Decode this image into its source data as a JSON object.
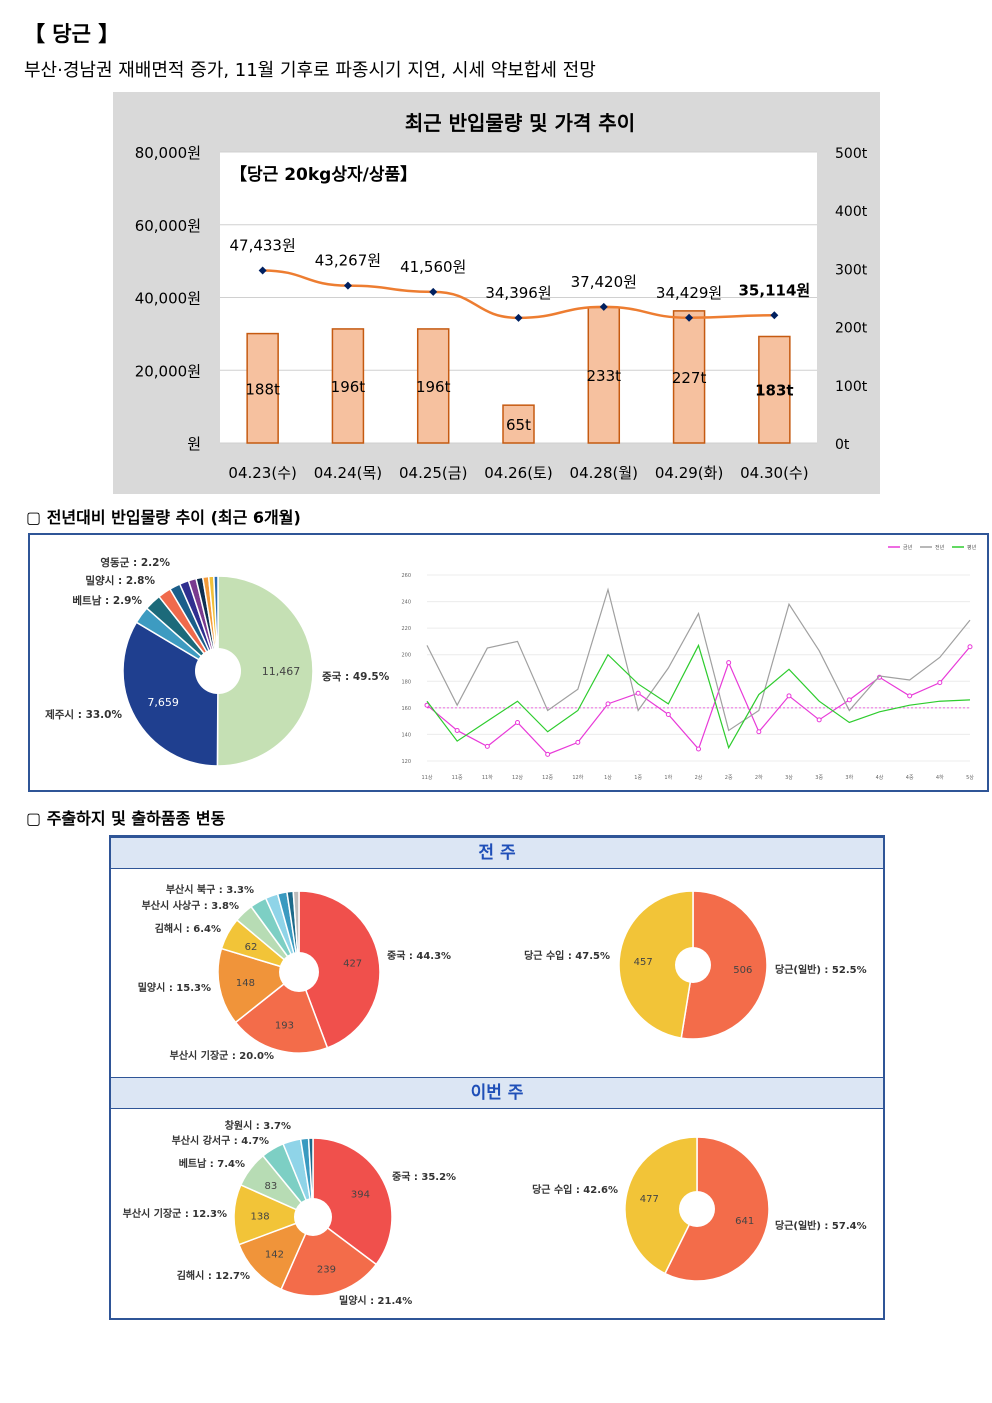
{
  "header": {
    "title": "【 당근 】",
    "subtitle": "부산·경남권 재배면적 증가, 11월 기후로 파종시기 지연, 시세 약보합세 전망"
  },
  "sections": {
    "prev_year": "▢  전년대비 반입물량 추이 (최근 6개월)",
    "shipping": "▢  주출하지 및 출하품종 변동",
    "last_week": "전 주",
    "this_week": "이번 주"
  },
  "chart_data": [
    {
      "type": "bar+line",
      "title": "최근 반입물량 및 가격 추이",
      "subtitle": "【당근 20kg상자/상품】",
      "categories": [
        "04.23(수)",
        "04.24(목)",
        "04.25(금)",
        "04.26(토)",
        "04.28(월)",
        "04.29(화)",
        "04.30(수)"
      ],
      "price_labels": [
        "47,433원",
        "43,267원",
        "41,560원",
        "34,396원",
        "37,420원",
        "34,429원",
        "35,114원"
      ],
      "price": [
        47433,
        43267,
        41560,
        34396,
        37420,
        34429,
        35114
      ],
      "volume_labels": [
        "188t",
        "196t",
        "196t",
        "65t",
        "233t",
        "227t",
        "183t"
      ],
      "volume": [
        188,
        196,
        196,
        65,
        233,
        227,
        183
      ],
      "left_axis": {
        "ticks": [
          "80,000원",
          "60,000원",
          "40,000원",
          "20,000원",
          "원"
        ],
        "range": [
          0,
          80000
        ]
      },
      "right_axis": {
        "ticks": [
          "500t",
          "400t",
          "300t",
          "200t",
          "100t",
          "0t"
        ],
        "range": [
          0,
          500
        ]
      },
      "colors": {
        "bar": "#f6c19f",
        "bar_stroke": "#c55a11",
        "line": "#ed7d31",
        "marker": "#002060"
      }
    },
    {
      "type": "pie",
      "slices": [
        {
          "label": "중국 : 49.5%",
          "value": 11467,
          "value_label": "11,467",
          "color": "#c5e0b4"
        },
        {
          "label": "제주시 : 33.0%",
          "value": 7659,
          "value_label": "7,659",
          "color": "#1f3f8f"
        },
        {
          "label": "베트남 : 2.9%",
          "value": 672,
          "color": "#3d9bc1"
        },
        {
          "label": "밀양시 : 2.8%",
          "value": 649,
          "color": "#1c6a7a"
        },
        {
          "label": "영동군 : 2.2%",
          "value": 510,
          "color": "#f06a4c"
        },
        {
          "label": "",
          "value": 420,
          "color": "#1b5e8a"
        },
        {
          "label": "",
          "value": 360,
          "color": "#2f2f8f"
        },
        {
          "label": "",
          "value": 300,
          "color": "#7a3a8f"
        },
        {
          "label": "",
          "value": 260,
          "color": "#0f2f4f"
        },
        {
          "label": "",
          "value": 230,
          "color": "#f39a3a"
        },
        {
          "label": "",
          "value": 200,
          "color": "#f0c03a"
        },
        {
          "label": "",
          "value": 160,
          "color": "#2a6ab0"
        }
      ]
    },
    {
      "type": "line",
      "legend": [
        "금년",
        "전년",
        "평년"
      ],
      "x": [
        "11상",
        "11중",
        "11하",
        "12상",
        "12중",
        "12하",
        "1상",
        "1중",
        "1하",
        "2상",
        "2중",
        "2하",
        "3상",
        "3중",
        "3하",
        "4상",
        "4중",
        "4하",
        "5상"
      ],
      "y_ticks": [
        120,
        140,
        160,
        180,
        200,
        220,
        240,
        260
      ],
      "ylim": [
        120,
        260
      ],
      "series": [
        {
          "name": "금년",
          "values": [
            162,
            143,
            131,
            149,
            125,
            134,
            163,
            171,
            155,
            129,
            194,
            142,
            169,
            151,
            166,
            183,
            169,
            179,
            206
          ],
          "color": "#e83ad8"
        },
        {
          "name": "전년",
          "values": [
            207,
            162,
            205,
            210,
            158,
            174,
            249,
            158,
            190,
            231,
            143,
            158,
            238,
            203,
            158,
            184,
            181,
            198,
            226
          ],
          "color": "#a0a0a0"
        },
        {
          "name": "평년",
          "values": [
            165,
            135,
            150,
            165,
            142,
            158,
            200,
            178,
            163,
            207,
            130,
            170,
            189,
            165,
            149,
            157,
            162,
            165,
            166
          ],
          "color": "#2ecc2e"
        }
      ],
      "reference": 160
    },
    {
      "type": "pie",
      "title": "전 주",
      "slices": [
        {
          "label": "중국 : 44.3%",
          "value": 427,
          "value_label": "427",
          "color": "#f0504c"
        },
        {
          "label": "부산시 기장군 : 20.0%",
          "value": 193,
          "value_label": "193",
          "color": "#f36c4a"
        },
        {
          "label": "밀양시 : 15.3%",
          "value": 148,
          "value_label": "148",
          "color": "#f0943a"
        },
        {
          "label": "김해시 : 6.4%",
          "value": 62,
          "value_label": "62",
          "color": "#f2c438"
        },
        {
          "label": "부산시 사상구 : 3.8%",
          "value": 37,
          "color": "#b7dcb4"
        },
        {
          "label": "부산시 북구 : 3.3%",
          "value": 32,
          "color": "#7dcfc4"
        },
        {
          "label": "",
          "value": 24,
          "color": "#8fd4e8"
        },
        {
          "label": "",
          "value": 18,
          "color": "#3a9ac0"
        },
        {
          "label": "",
          "value": 12,
          "color": "#1d6a8a"
        },
        {
          "label": "",
          "value": 11,
          "color": "#bbbbbb"
        }
      ]
    },
    {
      "type": "pie",
      "title": "전 주",
      "slices": [
        {
          "label": "당근(일반) : 52.5%",
          "value": 506,
          "value_label": "506",
          "color": "#f36c4a"
        },
        {
          "label": "당근 수입 : 47.5%",
          "value": 457,
          "value_label": "457",
          "color": "#f2c438"
        }
      ]
    },
    {
      "type": "pie",
      "title": "이번 주",
      "slices": [
        {
          "label": "중국 : 35.2%",
          "value": 394,
          "value_label": "394",
          "color": "#f0504c"
        },
        {
          "label": "밀양시 : 21.4%",
          "value": 239,
          "value_label": "239",
          "color": "#f36c4a"
        },
        {
          "label": "김해시 : 12.7%",
          "value": 142,
          "value_label": "142",
          "color": "#f0943a"
        },
        {
          "label": "부산시 기장군 : 12.3%",
          "value": 138,
          "value_label": "138",
          "color": "#f2c438"
        },
        {
          "label": "베트남 : 7.4%",
          "value": 83,
          "value_label": "83",
          "color": "#b7dcb4"
        },
        {
          "label": "부산시 강서구 : 4.7%",
          "value": 53,
          "color": "#7dcfc4"
        },
        {
          "label": "창원시 : 3.7%",
          "value": 41,
          "color": "#8fd4e8"
        },
        {
          "label": "",
          "value": 18,
          "color": "#3a9ac0"
        },
        {
          "label": "",
          "value": 10,
          "color": "#1d6a8a"
        }
      ]
    },
    {
      "type": "pie",
      "title": "이번 주",
      "slices": [
        {
          "label": "당근(일반) : 57.4%",
          "value": 641,
          "value_label": "641",
          "color": "#f36c4a"
        },
        {
          "label": "당근 수입 : 42.6%",
          "value": 477,
          "value_label": "477",
          "color": "#f2c438"
        }
      ]
    }
  ]
}
